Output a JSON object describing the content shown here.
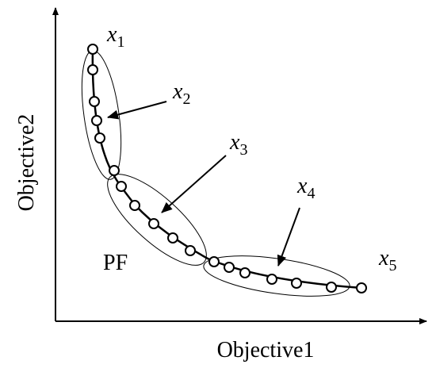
{
  "axes": {
    "x_label": "Objective1",
    "y_label": "Objective2"
  },
  "front_label": "PF",
  "points": [
    {
      "base": "x",
      "sub": "1"
    },
    {
      "base": "x",
      "sub": "2"
    },
    {
      "base": "x",
      "sub": "3"
    },
    {
      "base": "x",
      "sub": "4"
    },
    {
      "base": "x",
      "sub": "5"
    }
  ]
}
